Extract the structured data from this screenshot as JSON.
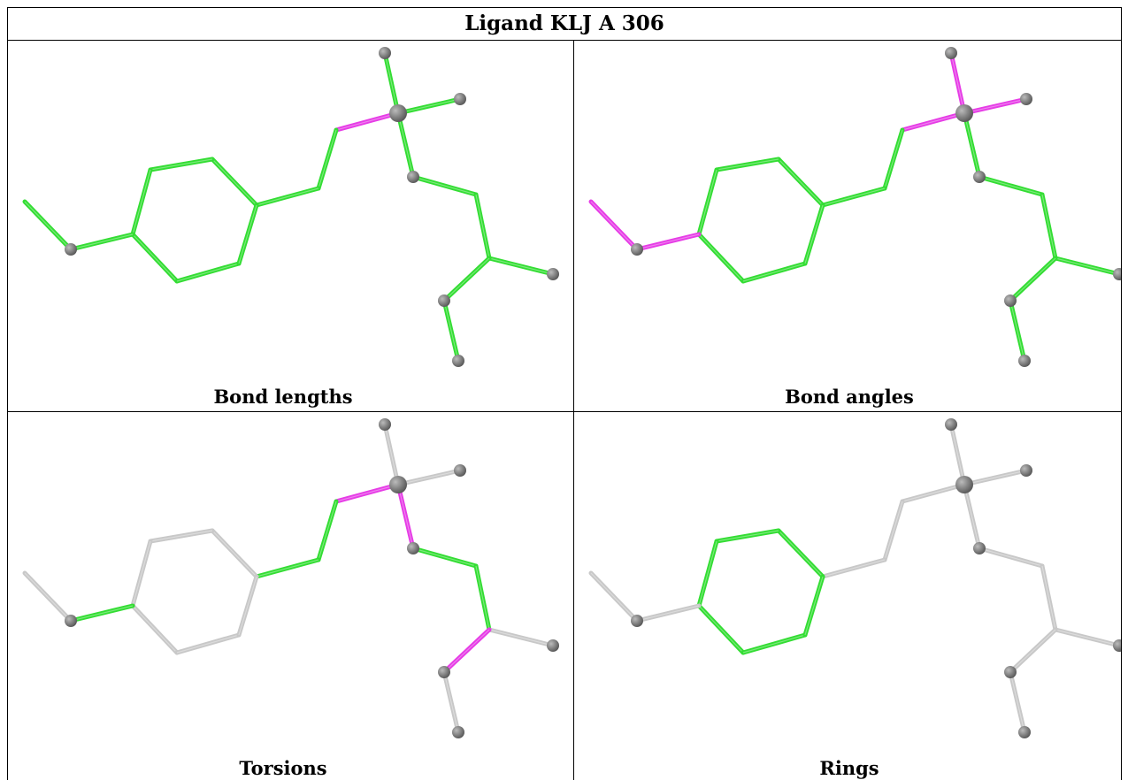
{
  "title": "Ligand KLJ A 306",
  "panels": [
    {
      "caption": "Bond lengths"
    },
    {
      "caption": "Bond angles"
    },
    {
      "caption": "Torsions"
    },
    {
      "caption": "Rings"
    }
  ]
}
